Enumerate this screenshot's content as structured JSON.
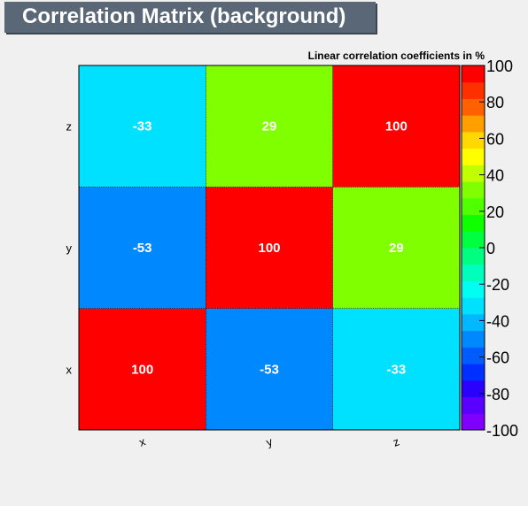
{
  "title": "Correlation Matrix (background)",
  "chart_data": {
    "type": "heatmap",
    "title": "Correlation Matrix (background)",
    "colorbar_title": "Linear correlation coefficients in %",
    "x_categories": [
      "x",
      "y",
      "z"
    ],
    "y_categories": [
      "x",
      "y",
      "z"
    ],
    "values": [
      [
        100,
        -53,
        -33
      ],
      [
        -53,
        100,
        29
      ],
      [
        -33,
        29,
        100
      ]
    ],
    "zlim": [
      -100,
      100
    ],
    "colorbar_ticks": [
      100,
      80,
      60,
      40,
      20,
      0,
      -20,
      -40,
      -60,
      -80,
      -100
    ],
    "colorbar_tick_labels": [
      "100",
      "80",
      "60",
      "40",
      "20",
      "0",
      "-20",
      "-40",
      "-60",
      "-80",
      "-100"
    ],
    "colorbar_colors": [
      "#8000ff",
      "#5a00ff",
      "#2a00ff",
      "#0030ff",
      "#005cff",
      "#0088ff",
      "#00b8ff",
      "#00e0ff",
      "#00fff0",
      "#00ffbc",
      "#00ff80",
      "#00ff40",
      "#10ff00",
      "#50ff00",
      "#80ff00",
      "#c0ff00",
      "#ffff00",
      "#ffd800",
      "#ffa000",
      "#ff6000",
      "#ff3000",
      "#ff0000"
    ]
  }
}
